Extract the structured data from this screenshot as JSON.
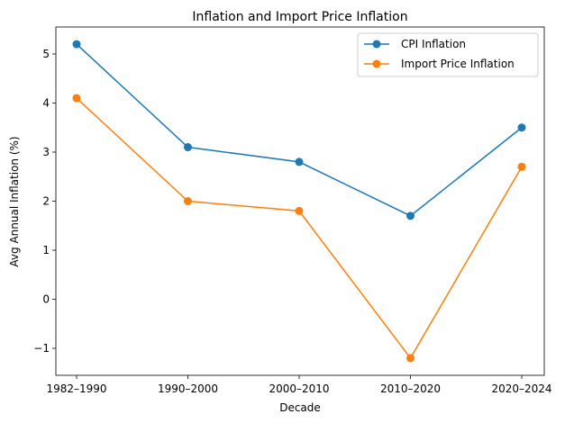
{
  "chart_data": {
    "type": "line",
    "title": "Inflation and Import Price Inflation",
    "xlabel": "Decade",
    "ylabel": "Avg Annual Inflation (%)",
    "categories": [
      "1982–1990",
      "1990–2000",
      "2000–2010",
      "2010–2020",
      "2020–2024"
    ],
    "ylim": [
      -1.55,
      5.55
    ],
    "yticks": [
      -1,
      0,
      1,
      2,
      3,
      4,
      5
    ],
    "ytick_labels": [
      "−1",
      "0",
      "1",
      "2",
      "3",
      "4",
      "5"
    ],
    "grid": false,
    "legend_position": "top-right",
    "series": [
      {
        "name": "CPI Inflation",
        "color": "#1f77b4",
        "marker": "circle",
        "values": [
          5.2,
          3.1,
          2.8,
          1.7,
          3.5
        ]
      },
      {
        "name": "Import Price Inflation",
        "color": "#ff7f0e",
        "marker": "circle",
        "values": [
          4.1,
          2.0,
          1.8,
          -1.2,
          2.7
        ]
      }
    ]
  }
}
